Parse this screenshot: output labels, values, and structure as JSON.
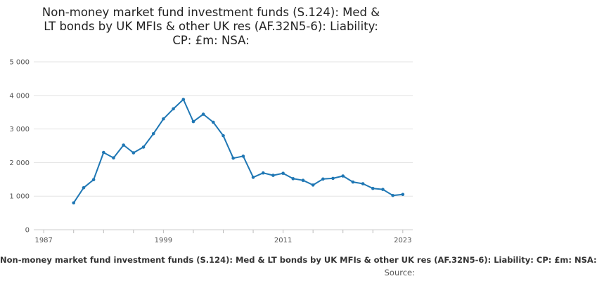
{
  "chart_data": {
    "type": "line",
    "title_lines": [
      "Non-money market fund investment funds (S.124): Med &",
      "LT bonds by UK MFIs & other UK res (AF.32N5-6): Liability:",
      "CP: £m: NSA:"
    ],
    "xlabel": "",
    "ylabel": "",
    "xlim": [
      1986,
      2024
    ],
    "ylim": [
      0,
      5000
    ],
    "x_ticks": [
      1987,
      1999,
      2011,
      2023
    ],
    "x_tick_labels": [
      "1987",
      "1999",
      "2011",
      "2023"
    ],
    "y_ticks": [
      0,
      1000,
      2000,
      3000,
      4000,
      5000
    ],
    "y_tick_labels": [
      "0",
      "1 000",
      "2 000",
      "3 000",
      "4 000",
      "5 000"
    ],
    "grid": true,
    "legend": "none",
    "series": [
      {
        "color": "#1f77b4",
        "x": [
          1990,
          1991,
          1992,
          1993,
          1994,
          1995,
          1996,
          1997,
          1998,
          1999,
          2000,
          2001,
          2002,
          2003,
          2004,
          2005,
          2006,
          2007,
          2008,
          2009,
          2010,
          2011,
          2012,
          2013,
          2014,
          2015,
          2016,
          2017,
          2018,
          2019,
          2020,
          2021,
          2022,
          2023
        ],
        "values": [
          800,
          1250,
          1490,
          2300,
          2140,
          2520,
          2290,
          2460,
          2860,
          3300,
          3600,
          3880,
          3220,
          3440,
          3200,
          2800,
          2130,
          2190,
          1560,
          1690,
          1620,
          1680,
          1520,
          1470,
          1330,
          1510,
          1530,
          1600,
          1420,
          1370,
          1230,
          1200,
          1020,
          1050
        ]
      }
    ]
  },
  "footer": {
    "series_name": "Non-money market fund investment funds (S.124): Med & LT bonds by UK MFIs & other UK res (AF.32N5-6): Liability: CP: £m: NSA:",
    "source_label": "Source:"
  }
}
